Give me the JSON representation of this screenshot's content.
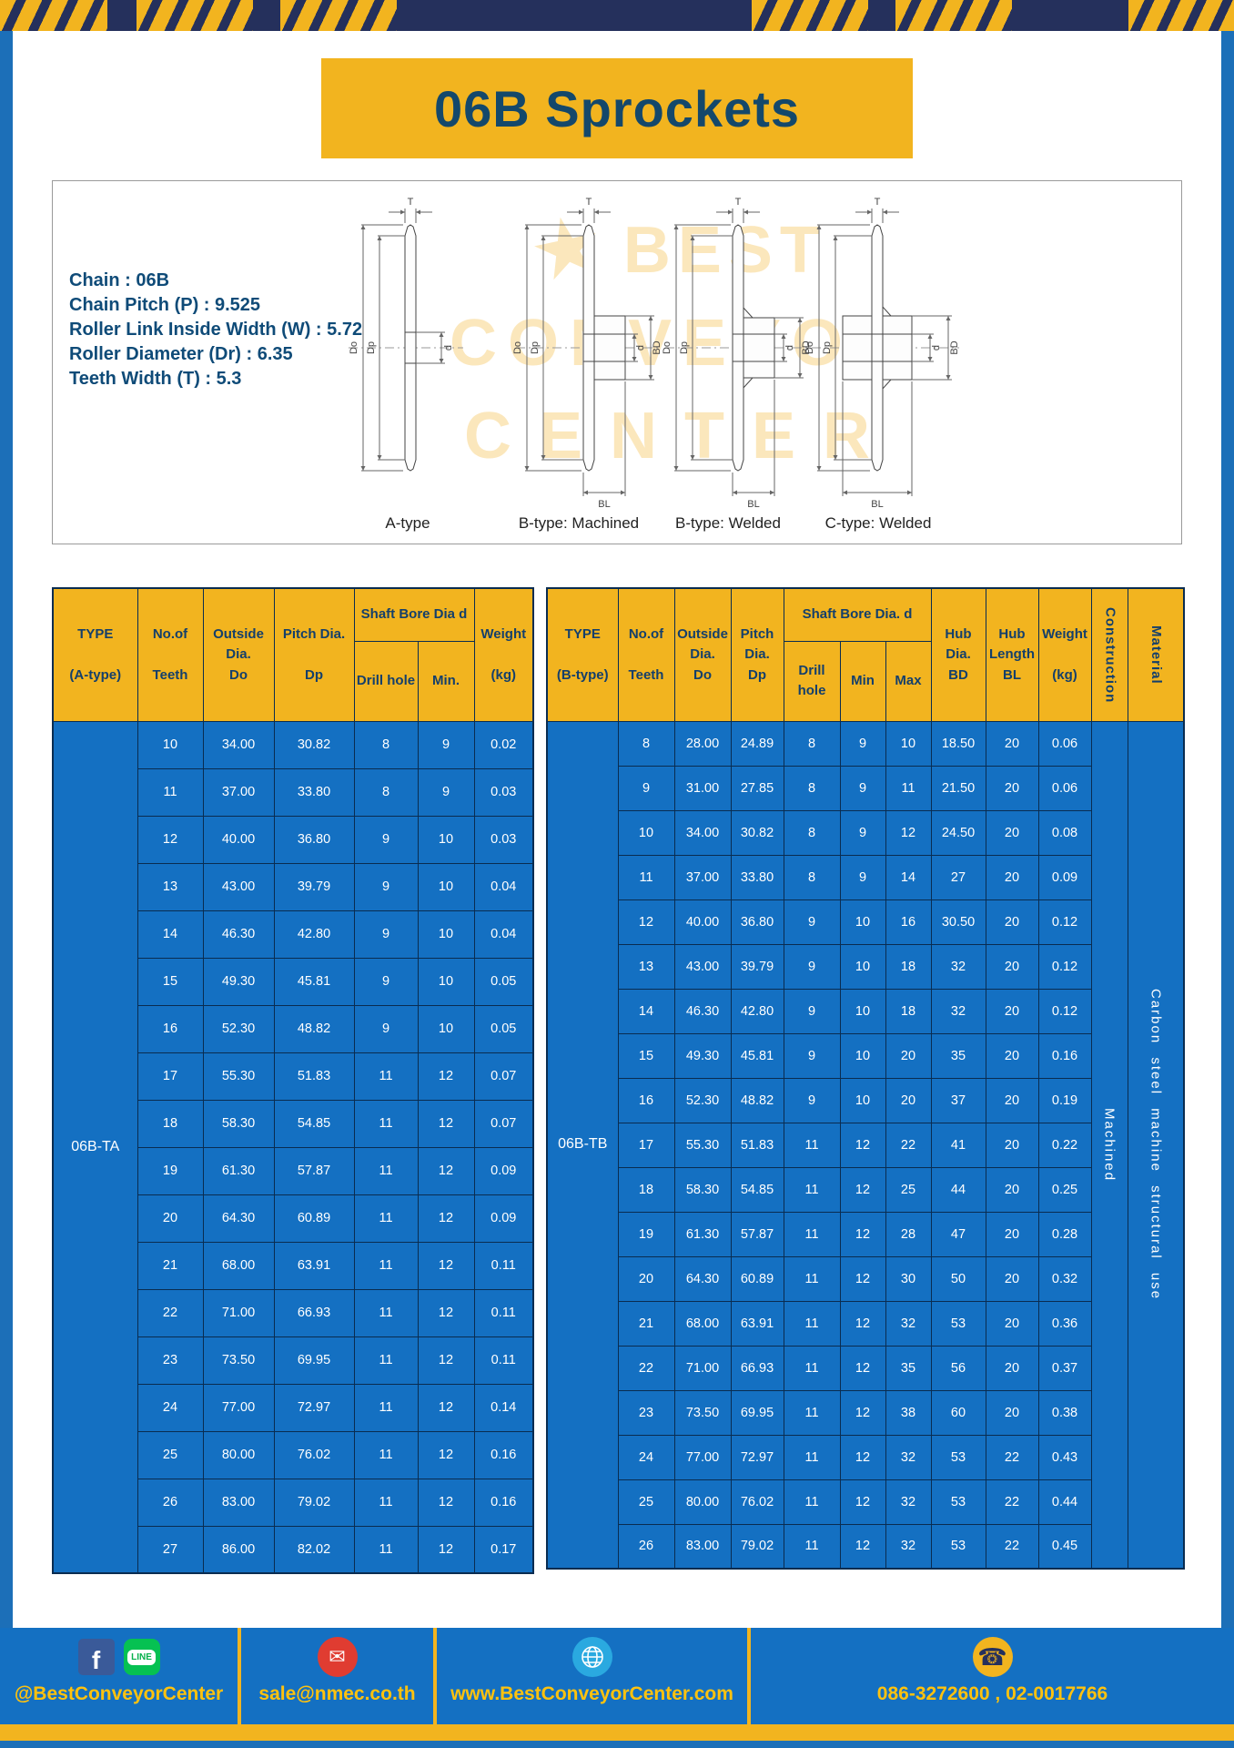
{
  "page": {
    "title": "06B Sprockets"
  },
  "colors": {
    "accent_yellow": "#F2B41F",
    "table_blue": "#1470C2",
    "dark_navy_band": "#25305C",
    "header_text_navy": "#143F6B",
    "footer_text_yellow": "#FFC20E"
  },
  "specs": {
    "lines": [
      "Chain : 06B",
      "Chain Pitch (P) : 9.525",
      "Roller Link Inside Width (W) : 5.72",
      "Roller Diameter (Dr) : 6.35",
      "Teeth Width (T) : 5.3"
    ]
  },
  "watermark": {
    "lines": [
      "BEST",
      "CONVEYOR",
      "CENTER"
    ]
  },
  "drawings": {
    "captions": [
      "A-type",
      "B-type: Machined",
      "B-type: Welded",
      "C-type: Welded"
    ],
    "dims": {
      "t": "T",
      "do": "Do",
      "dp": "Dp",
      "d": "d",
      "bd": "BD",
      "bl": "BL"
    }
  },
  "table_a": {
    "type_label": "06B-TA",
    "headers": {
      "type": "TYPE\n\n(A-type)",
      "teeth": "No.of\n\nTeeth",
      "outside": "Outside\nDia.\nDo",
      "pitch": "Pitch Dia.\n\nDp",
      "bore_group": "Shaft Bore Dia d",
      "drill": "Drill hole",
      "min": "Min.",
      "weight": "Weight\n\n(kg)"
    },
    "rows": [
      [
        "10",
        "34.00",
        "30.82",
        "8",
        "9",
        "0.02"
      ],
      [
        "11",
        "37.00",
        "33.80",
        "8",
        "9",
        "0.03"
      ],
      [
        "12",
        "40.00",
        "36.80",
        "9",
        "10",
        "0.03"
      ],
      [
        "13",
        "43.00",
        "39.79",
        "9",
        "10",
        "0.04"
      ],
      [
        "14",
        "46.30",
        "42.80",
        "9",
        "10",
        "0.04"
      ],
      [
        "15",
        "49.30",
        "45.81",
        "9",
        "10",
        "0.05"
      ],
      [
        "16",
        "52.30",
        "48.82",
        "9",
        "10",
        "0.05"
      ],
      [
        "17",
        "55.30",
        "51.83",
        "11",
        "12",
        "0.07"
      ],
      [
        "18",
        "58.30",
        "54.85",
        "11",
        "12",
        "0.07"
      ],
      [
        "19",
        "61.30",
        "57.87",
        "11",
        "12",
        "0.09"
      ],
      [
        "20",
        "64.30",
        "60.89",
        "11",
        "12",
        "0.09"
      ],
      [
        "21",
        "68.00",
        "63.91",
        "11",
        "12",
        "0.11"
      ],
      [
        "22",
        "71.00",
        "66.93",
        "11",
        "12",
        "0.11"
      ],
      [
        "23",
        "73.50",
        "69.95",
        "11",
        "12",
        "0.11"
      ],
      [
        "24",
        "77.00",
        "72.97",
        "11",
        "12",
        "0.14"
      ],
      [
        "25",
        "80.00",
        "76.02",
        "11",
        "12",
        "0.16"
      ],
      [
        "26",
        "83.00",
        "79.02",
        "11",
        "12",
        "0.16"
      ],
      [
        "27",
        "86.00",
        "82.02",
        "11",
        "12",
        "0.17"
      ]
    ]
  },
  "table_b": {
    "type_label": "06B-TB",
    "construction": "Machined",
    "material": "Carbon steel machine structural use",
    "headers": {
      "type": "TYPE\n\n(B-type)",
      "teeth": "No.of\n\nTeeth",
      "outside": "Outside\nDia.\nDo",
      "pitch": "Pitch\nDia.\nDp",
      "bore_group": "Shaft Bore Dia. d",
      "drill": "Drill hole",
      "min": "Min",
      "max": "Max",
      "hub_dia": "Hub\nDia.\nBD",
      "hub_len": "Hub\nLength\nBL",
      "weight": "Weight\n\n(kg)",
      "construction": "Construction",
      "material": "Material"
    },
    "rows": [
      [
        "8",
        "28.00",
        "24.89",
        "8",
        "9",
        "10",
        "18.50",
        "20",
        "0.06"
      ],
      [
        "9",
        "31.00",
        "27.85",
        "8",
        "9",
        "11",
        "21.50",
        "20",
        "0.06"
      ],
      [
        "10",
        "34.00",
        "30.82",
        "8",
        "9",
        "12",
        "24.50",
        "20",
        "0.08"
      ],
      [
        "11",
        "37.00",
        "33.80",
        "8",
        "9",
        "14",
        "27",
        "20",
        "0.09"
      ],
      [
        "12",
        "40.00",
        "36.80",
        "9",
        "10",
        "16",
        "30.50",
        "20",
        "0.12"
      ],
      [
        "13",
        "43.00",
        "39.79",
        "9",
        "10",
        "18",
        "32",
        "20",
        "0.12"
      ],
      [
        "14",
        "46.30",
        "42.80",
        "9",
        "10",
        "18",
        "32",
        "20",
        "0.12"
      ],
      [
        "15",
        "49.30",
        "45.81",
        "9",
        "10",
        "20",
        "35",
        "20",
        "0.16"
      ],
      [
        "16",
        "52.30",
        "48.82",
        "9",
        "10",
        "20",
        "37",
        "20",
        "0.19"
      ],
      [
        "17",
        "55.30",
        "51.83",
        "11",
        "12",
        "22",
        "41",
        "20",
        "0.22"
      ],
      [
        "18",
        "58.30",
        "54.85",
        "11",
        "12",
        "25",
        "44",
        "20",
        "0.25"
      ],
      [
        "19",
        "61.30",
        "57.87",
        "11",
        "12",
        "28",
        "47",
        "20",
        "0.28"
      ],
      [
        "20",
        "64.30",
        "60.89",
        "11",
        "12",
        "30",
        "50",
        "20",
        "0.32"
      ],
      [
        "21",
        "68.00",
        "63.91",
        "11",
        "12",
        "32",
        "53",
        "20",
        "0.36"
      ],
      [
        "22",
        "71.00",
        "66.93",
        "11",
        "12",
        "35",
        "56",
        "20",
        "0.37"
      ],
      [
        "23",
        "73.50",
        "69.95",
        "11",
        "12",
        "38",
        "60",
        "20",
        "0.38"
      ],
      [
        "24",
        "77.00",
        "72.97",
        "11",
        "12",
        "32",
        "53",
        "22",
        "0.43"
      ],
      [
        "25",
        "80.00",
        "76.02",
        "11",
        "12",
        "32",
        "53",
        "22",
        "0.44"
      ],
      [
        "26",
        "83.00",
        "79.02",
        "11",
        "12",
        "32",
        "53",
        "22",
        "0.45"
      ]
    ]
  },
  "footer": {
    "facebook_glyph": "f",
    "line_text": "LINE",
    "sections": [
      {
        "label": "@BestConveyorCenter"
      },
      {
        "label": "sale@nmec.co.th"
      },
      {
        "label": "www.BestConveyorCenter.com"
      },
      {
        "label": "086-3272600 , 02-0017766"
      }
    ]
  }
}
